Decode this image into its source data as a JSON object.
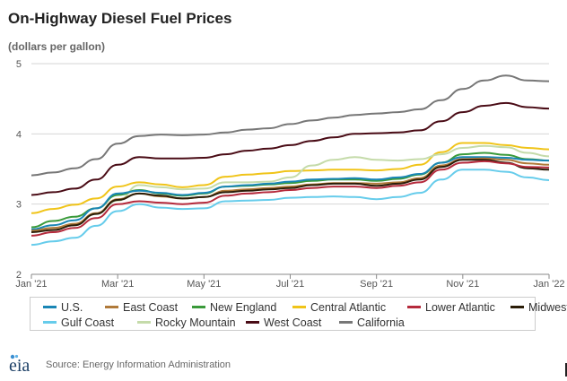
{
  "chart_data": {
    "type": "line",
    "title": "On-Highway Diesel Fuel Prices",
    "ylabel": "(dollars per gallon)",
    "xlabel": "",
    "ylim": [
      2,
      5
    ],
    "yticks": [
      "2",
      "3",
      "4",
      "5"
    ],
    "xlim": [
      0,
      12
    ],
    "xticks": [
      {
        "x": 0,
        "label": "Jan '21"
      },
      {
        "x": 2,
        "label": "Mar '21"
      },
      {
        "x": 4,
        "label": "May '21"
      },
      {
        "x": 6,
        "label": "Jul '21"
      },
      {
        "x": 8,
        "label": "Sep '21"
      },
      {
        "x": 10,
        "label": "Nov '21"
      },
      {
        "x": 12,
        "label": "Jan '22"
      }
    ],
    "grid": true,
    "x": [
      0,
      0.5,
      1,
      1.5,
      2,
      2.5,
      3,
      3.5,
      4,
      4.5,
      5,
      5.5,
      6,
      6.5,
      7,
      7.5,
      8,
      8.5,
      9,
      9.5,
      10,
      10.5,
      11,
      11.5,
      12
    ],
    "series": [
      {
        "name": "California",
        "color": "#777777",
        "values": [
          3.41,
          3.45,
          3.51,
          3.64,
          3.86,
          3.97,
          3.99,
          3.98,
          3.99,
          4.02,
          4.06,
          4.08,
          4.14,
          4.19,
          4.23,
          4.27,
          4.29,
          4.31,
          4.35,
          4.48,
          4.64,
          4.76,
          4.83,
          4.76,
          4.75
        ]
      },
      {
        "name": "West Coast",
        "color": "#4a0c16",
        "values": [
          3.13,
          3.17,
          3.22,
          3.35,
          3.56,
          3.67,
          3.65,
          3.65,
          3.66,
          3.71,
          3.76,
          3.79,
          3.84,
          3.9,
          3.95,
          4.0,
          4.01,
          4.02,
          4.05,
          4.18,
          4.31,
          4.4,
          4.44,
          4.38,
          4.36
        ]
      },
      {
        "name": "Central Atlantic",
        "color": "#f0c419",
        "values": [
          2.87,
          2.93,
          2.99,
          3.08,
          3.25,
          3.31,
          3.28,
          3.24,
          3.27,
          3.39,
          3.42,
          3.44,
          3.47,
          3.48,
          3.49,
          3.49,
          3.48,
          3.5,
          3.56,
          3.74,
          3.87,
          3.87,
          3.84,
          3.8,
          3.78
        ]
      },
      {
        "name": "Rocky Mountain",
        "color": "#c5dbaa",
        "values": [
          2.63,
          2.66,
          2.7,
          2.86,
          3.05,
          3.27,
          3.24,
          3.21,
          3.22,
          3.31,
          3.31,
          3.32,
          3.38,
          3.55,
          3.63,
          3.67,
          3.63,
          3.62,
          3.64,
          3.71,
          3.8,
          3.83,
          3.81,
          3.73,
          3.68
        ]
      },
      {
        "name": "New England",
        "color": "#3a9a3a",
        "values": [
          2.67,
          2.76,
          2.82,
          2.94,
          3.13,
          3.2,
          3.15,
          3.12,
          3.15,
          3.25,
          3.26,
          3.28,
          3.3,
          3.33,
          3.35,
          3.35,
          3.33,
          3.36,
          3.42,
          3.59,
          3.71,
          3.73,
          3.7,
          3.64,
          3.62
        ]
      },
      {
        "name": "U.S.",
        "color": "#1a86b5",
        "values": [
          2.64,
          2.7,
          2.77,
          2.94,
          3.15,
          3.19,
          3.16,
          3.13,
          3.16,
          3.25,
          3.27,
          3.29,
          3.32,
          3.35,
          3.36,
          3.37,
          3.35,
          3.38,
          3.43,
          3.59,
          3.67,
          3.67,
          3.66,
          3.63,
          3.62
        ]
      },
      {
        "name": "East Coast",
        "color": "#b07a3a",
        "values": [
          2.62,
          2.66,
          2.72,
          2.87,
          3.07,
          3.15,
          3.11,
          3.08,
          3.1,
          3.19,
          3.21,
          3.23,
          3.25,
          3.28,
          3.3,
          3.3,
          3.29,
          3.31,
          3.37,
          3.55,
          3.64,
          3.65,
          3.63,
          3.58,
          3.56
        ]
      },
      {
        "name": "Midwest",
        "color": "#2b1d08",
        "values": [
          2.6,
          2.63,
          2.7,
          2.86,
          3.06,
          3.15,
          3.12,
          3.08,
          3.1,
          3.17,
          3.19,
          3.21,
          3.23,
          3.27,
          3.29,
          3.29,
          3.26,
          3.29,
          3.35,
          3.53,
          3.63,
          3.63,
          3.59,
          3.51,
          3.49
        ]
      },
      {
        "name": "Lower Atlantic",
        "color": "#b52a3c",
        "values": [
          2.55,
          2.6,
          2.66,
          2.8,
          3.0,
          3.04,
          3.02,
          3.0,
          3.02,
          3.12,
          3.15,
          3.17,
          3.2,
          3.23,
          3.25,
          3.25,
          3.23,
          3.26,
          3.31,
          3.49,
          3.59,
          3.61,
          3.58,
          3.53,
          3.52
        ]
      },
      {
        "name": "Gulf Coast",
        "color": "#66cceb",
        "values": [
          2.42,
          2.47,
          2.52,
          2.69,
          2.9,
          3.0,
          2.95,
          2.93,
          2.94,
          3.04,
          3.05,
          3.06,
          3.09,
          3.1,
          3.11,
          3.1,
          3.07,
          3.1,
          3.16,
          3.35,
          3.49,
          3.49,
          3.46,
          3.38,
          3.34
        ]
      }
    ],
    "legend": {
      "placement": "bottom",
      "entries": [
        {
          "name": "U.S.",
          "color": "#1a86b5"
        },
        {
          "name": "East Coast",
          "color": "#b07a3a"
        },
        {
          "name": "New England",
          "color": "#3a9a3a"
        },
        {
          "name": "Central Atlantic",
          "color": "#f0c419"
        },
        {
          "name": "Lower Atlantic",
          "color": "#b52a3c"
        },
        {
          "name": "Midwest",
          "color": "#2b1d08"
        },
        {
          "name": "Gulf Coast",
          "color": "#66cceb"
        },
        {
          "name": "Rocky Mountain",
          "color": "#c5dbaa"
        },
        {
          "name": "West Coast",
          "color": "#4a0c16"
        },
        {
          "name": "California",
          "color": "#777777"
        }
      ]
    }
  },
  "footer": {
    "logo_text": "eia",
    "source": "Source: Energy Information Administration"
  }
}
